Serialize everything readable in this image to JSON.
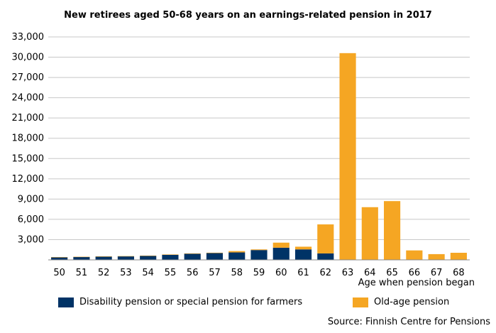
{
  "chart_data": {
    "type": "bar",
    "stacked": true,
    "title": "New retirees aged 50-68 years on an earnings-related pension in 2017",
    "xlabel": "Age when pension began",
    "ylabel": "",
    "ylim": [
      0,
      33000
    ],
    "yticks": [
      "3,000",
      "6,000",
      "9,000",
      "12,000",
      "15,000",
      "18,000",
      "21,000",
      "24,000",
      "27,000",
      "30,000",
      "33,000"
    ],
    "ytick_values": [
      3000,
      6000,
      9000,
      12000,
      15000,
      18000,
      21000,
      24000,
      27000,
      30000,
      33000
    ],
    "grid": true,
    "legend_position": "bottom",
    "categories": [
      "50",
      "51",
      "52",
      "53",
      "54",
      "55",
      "56",
      "57",
      "58",
      "59",
      "60",
      "61",
      "62",
      "63",
      "64",
      "65",
      "66",
      "67",
      "68"
    ],
    "series": [
      {
        "name": "Disability pension or special pension for farmers",
        "color": "#003366",
        "values": [
          380,
          430,
          480,
          520,
          580,
          750,
          900,
          1000,
          1100,
          1450,
          1800,
          1550,
          950,
          0,
          0,
          0,
          0,
          0,
          0
        ]
      },
      {
        "name": "Old-age pension",
        "color": "#F5A623",
        "values": [
          30,
          30,
          40,
          40,
          50,
          60,
          60,
          60,
          200,
          100,
          750,
          400,
          4300,
          30600,
          7800,
          8700,
          1400,
          850,
          1050
        ]
      }
    ]
  },
  "source": "Source: Finnish Centre for Pensions"
}
